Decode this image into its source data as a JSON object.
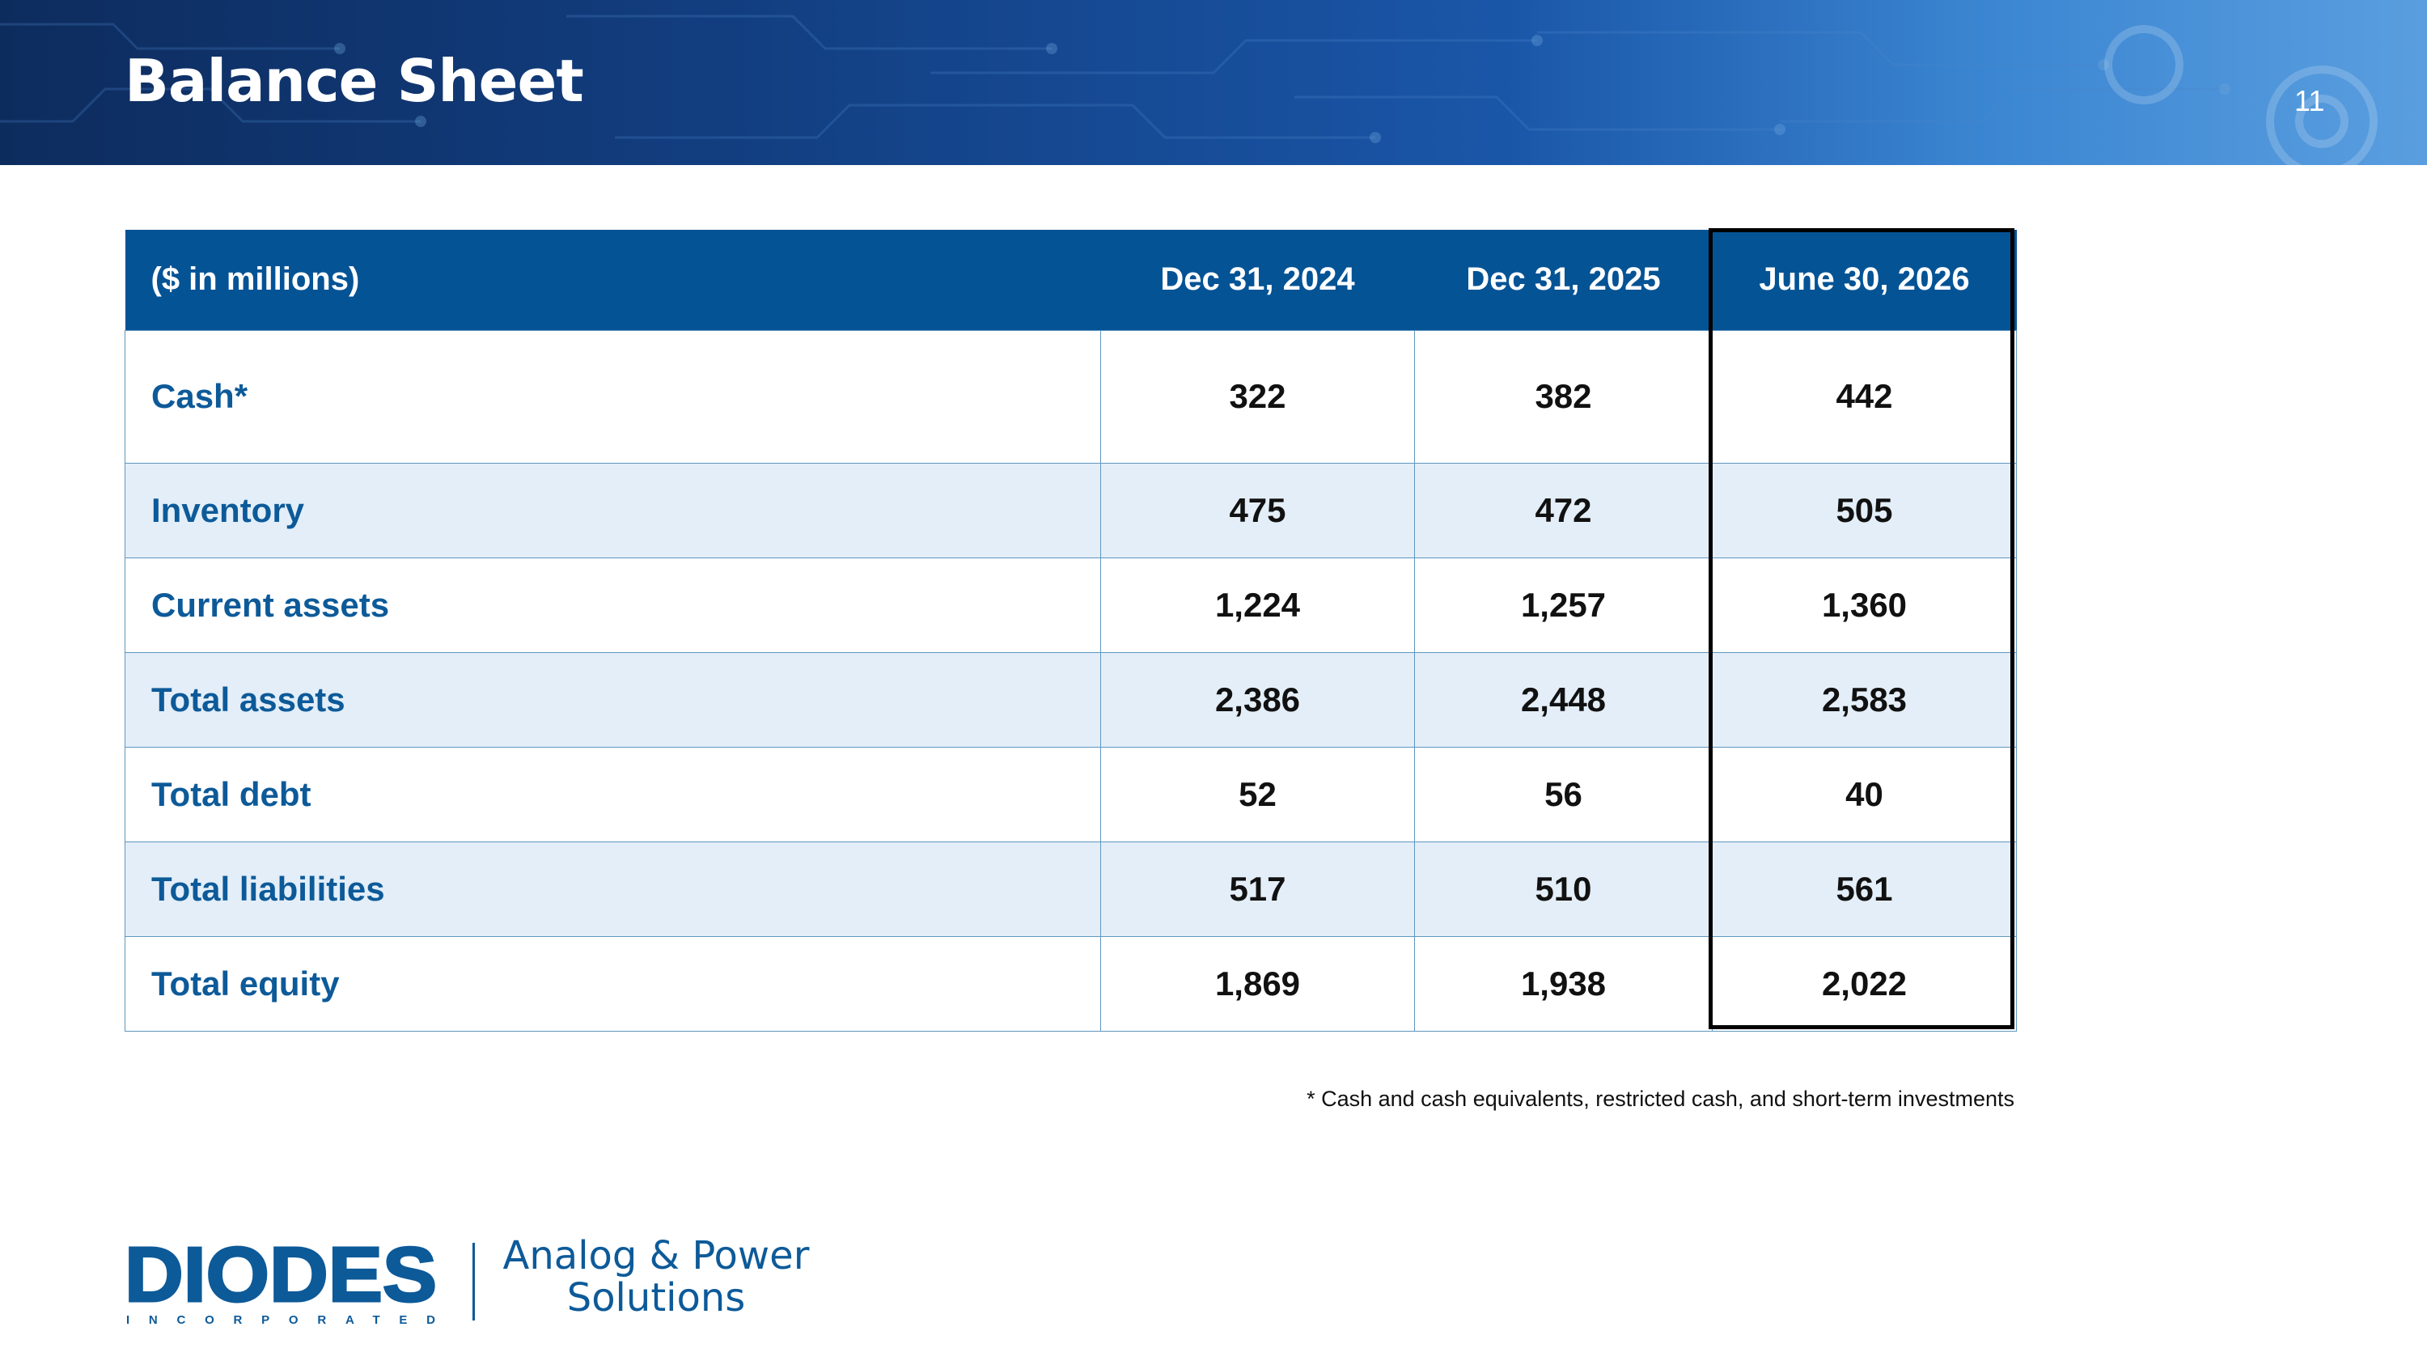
{
  "header": {
    "title": "Balance Sheet",
    "page_number": "11"
  },
  "table": {
    "columns": [
      "($ in millions)",
      "Dec 31, 2024",
      "Dec 31, 2025",
      "June 30, 2026"
    ],
    "highlighted_column": "June 30, 2026",
    "rows": [
      {
        "label": "Cash*",
        "values": [
          "322",
          "382",
          "442"
        ]
      },
      {
        "label": "Inventory",
        "values": [
          "475",
          "472",
          "505"
        ]
      },
      {
        "label": "Current assets",
        "values": [
          "1,224",
          "1,257",
          "1,360"
        ]
      },
      {
        "label": "Total assets",
        "values": [
          "2,386",
          "2,448",
          "2,583"
        ]
      },
      {
        "label": "Total debt",
        "values": [
          "52",
          "56",
          "40"
        ]
      },
      {
        "label": "Total liabilities",
        "values": [
          "517",
          "510",
          "561"
        ]
      },
      {
        "label": "Total equity",
        "values": [
          "1,869",
          "1,938",
          "2,022"
        ]
      }
    ]
  },
  "footnote": "* Cash and cash equivalents, restricted cash, and short-term investments",
  "logo": {
    "brand": "DIODES",
    "brand_sub": "INCORPORATED",
    "tagline_line1": "Analog & Power",
    "tagline_line2": "Solutions"
  },
  "colors": {
    "header_blue": "#045395",
    "label_blue": "#0d5a99",
    "alt_row": "#e3eef8",
    "grid": "#5f97bf"
  }
}
